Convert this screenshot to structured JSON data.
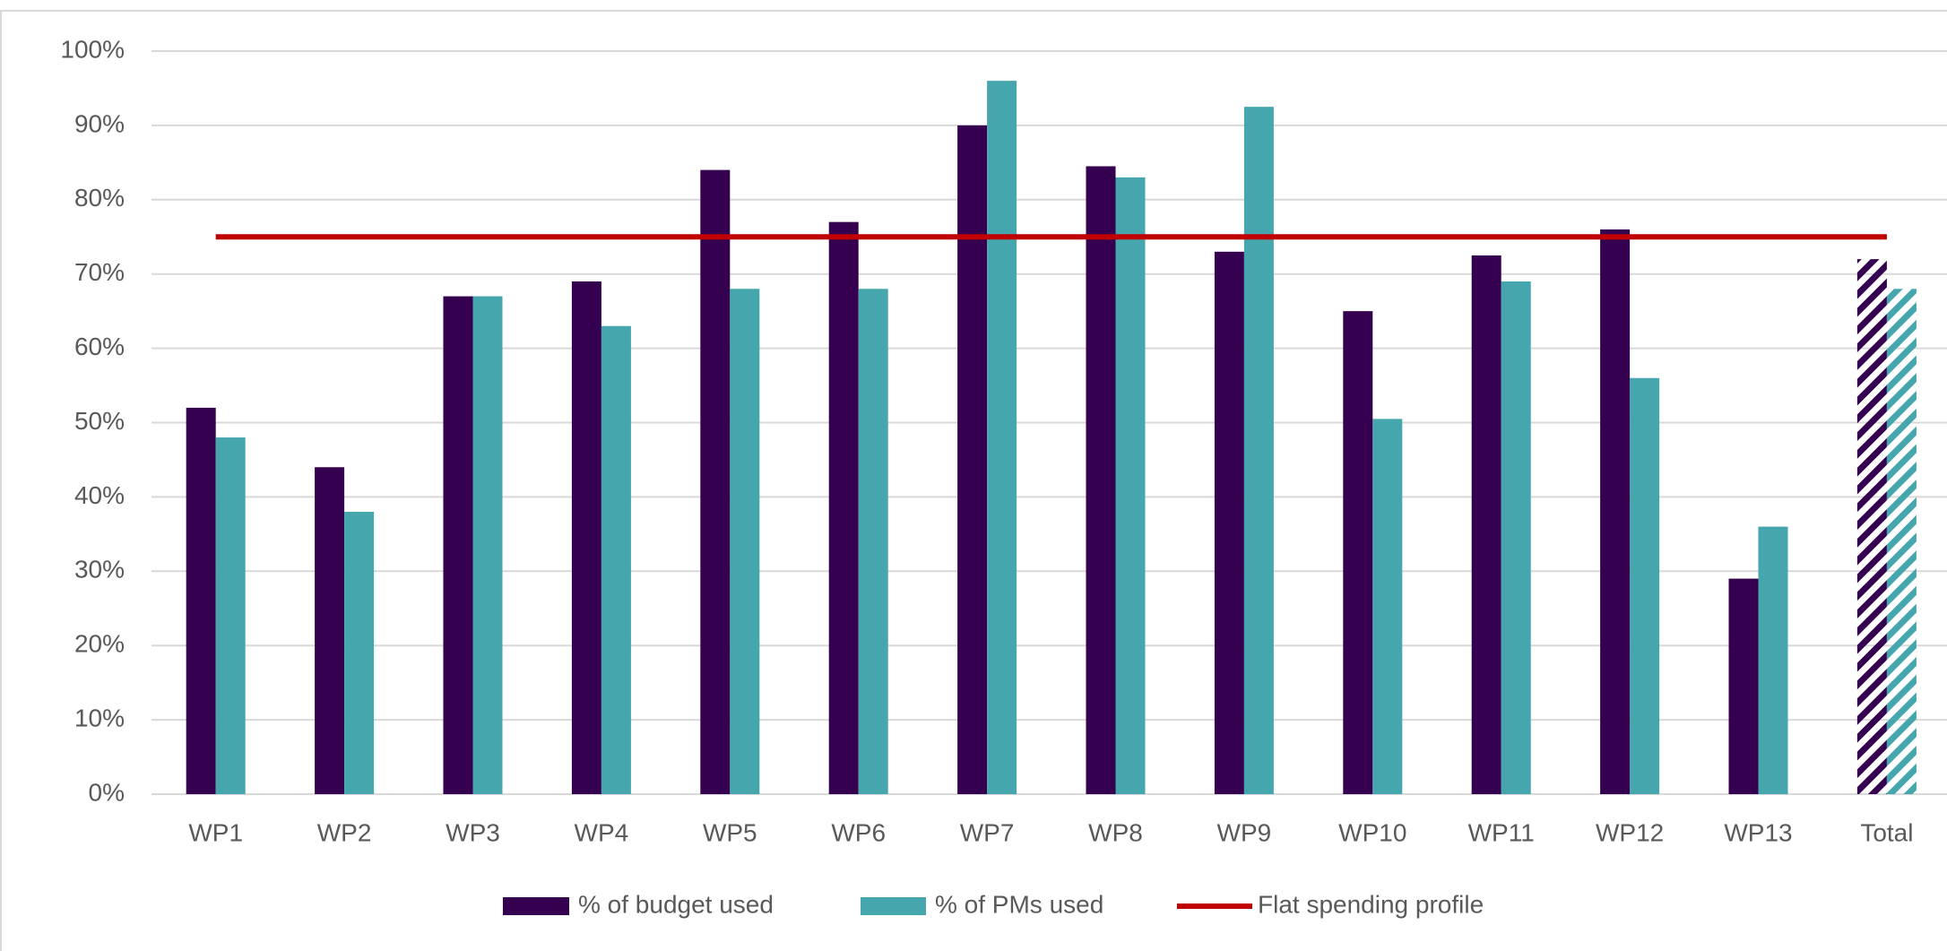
{
  "chart_data": {
    "type": "bar",
    "categories": [
      "WP1",
      "WP2",
      "WP3",
      "WP4",
      "WP5",
      "WP6",
      "WP7",
      "WP8",
      "WP9",
      "WP10",
      "WP11",
      "WP12",
      "WP13",
      "Total"
    ],
    "series": [
      {
        "name": "% of budget used",
        "color": "#350050",
        "values": [
          52,
          44,
          67,
          69,
          84,
          77,
          90,
          84.5,
          73,
          65,
          72.5,
          76,
          29,
          72
        ]
      },
      {
        "name": "% of PMs used",
        "color": "#46a6ad",
        "values": [
          48,
          38,
          67,
          63,
          68,
          68,
          96,
          83,
          92.5,
          50.5,
          69,
          56,
          36,
          68
        ]
      },
      {
        "name": "Flat spending profile",
        "color": "#c00000",
        "type": "line",
        "values": [
          75,
          75,
          75,
          75,
          75,
          75,
          75,
          75,
          75,
          75,
          75,
          75,
          75,
          75
        ]
      }
    ],
    "hatched_category": 13,
    "ylim": [
      0,
      100
    ],
    "yticks": [
      {
        "value": 0,
        "label": "0%"
      },
      {
        "value": 10,
        "label": "10%"
      },
      {
        "value": 20,
        "label": "20%"
      },
      {
        "value": 30,
        "label": "30%"
      },
      {
        "value": 40,
        "label": "40%"
      },
      {
        "value": 50,
        "label": "50%"
      },
      {
        "value": 60,
        "label": "60%"
      },
      {
        "value": 70,
        "label": "70%"
      },
      {
        "value": 80,
        "label": "80%"
      },
      {
        "value": 90,
        "label": "90%"
      },
      {
        "value": 100,
        "label": "100%"
      }
    ],
    "grid": true,
    "legend": "bottom"
  }
}
